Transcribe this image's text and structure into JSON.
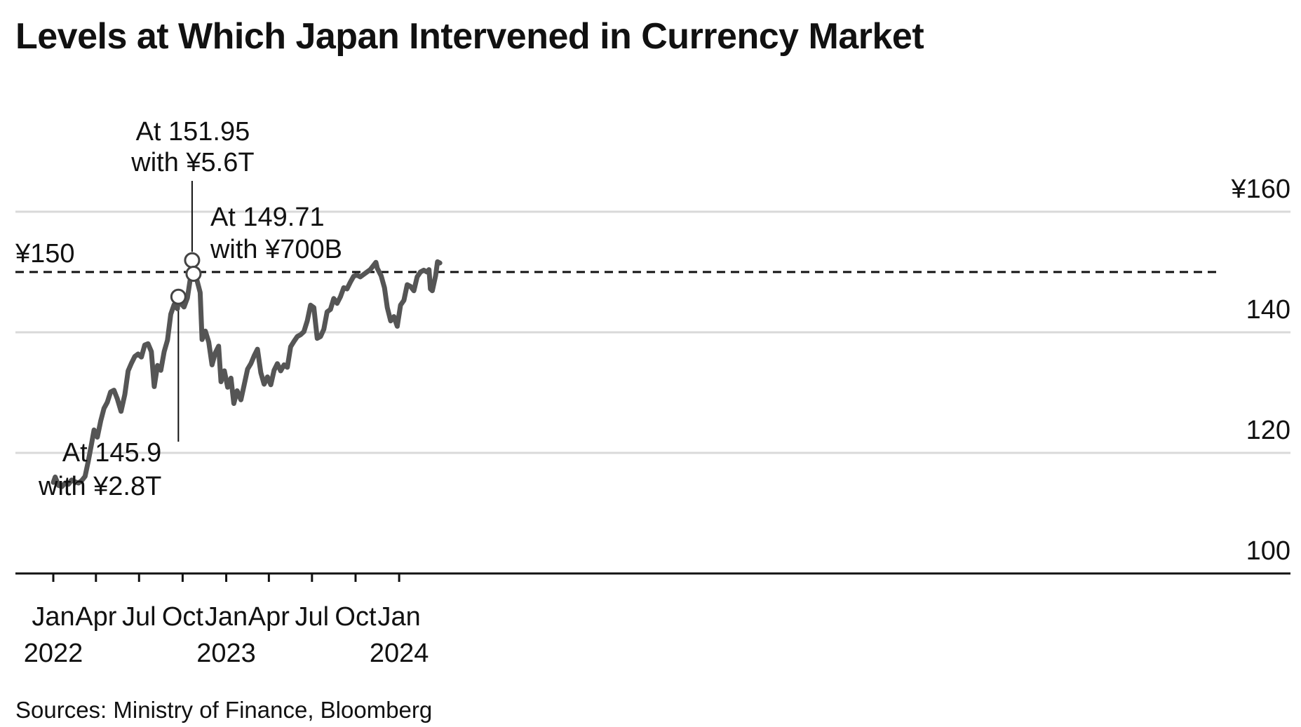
{
  "chart_data": {
    "type": "line",
    "title": "Levels at Which Japan Intervened in Currency Market",
    "source": "Sources: Ministry of Finance, Bloomberg",
    "xlabel": "",
    "ylabel": "",
    "y_ticks": [
      {
        "value": 100,
        "label": "100"
      },
      {
        "value": 120,
        "label": "120"
      },
      {
        "value": 140,
        "label": "140"
      },
      {
        "value": 160,
        "label": "¥160"
      }
    ],
    "ylim": [
      100,
      160
    ],
    "grid": true,
    "x_ticks": [
      {
        "date": "2022-01-01",
        "label": "Jan",
        "year": "2022"
      },
      {
        "date": "2022-04-01",
        "label": "Apr",
        "year": ""
      },
      {
        "date": "2022-07-01",
        "label": "Jul",
        "year": ""
      },
      {
        "date": "2022-10-01",
        "label": "Oct",
        "year": ""
      },
      {
        "date": "2023-01-01",
        "label": "Jan",
        "year": "2023"
      },
      {
        "date": "2023-04-01",
        "label": "Apr",
        "year": ""
      },
      {
        "date": "2023-07-01",
        "label": "Jul",
        "year": ""
      },
      {
        "date": "2023-10-01",
        "label": "Oct",
        "year": ""
      },
      {
        "date": "2024-01-01",
        "label": "Jan",
        "year": "2024"
      }
    ],
    "reference_line": {
      "value": 150,
      "label": "¥150"
    },
    "series": [
      {
        "line_color": "#555555",
        "points": [
          [
            "2022-01-01",
            115.1
          ],
          [
            "2022-01-05",
            116.0
          ],
          [
            "2022-01-12",
            114.6
          ],
          [
            "2022-01-19",
            114.4
          ],
          [
            "2022-01-26",
            115.0
          ],
          [
            "2022-02-02",
            114.8
          ],
          [
            "2022-02-09",
            115.5
          ],
          [
            "2022-02-16",
            115.2
          ],
          [
            "2022-02-23",
            115.0
          ],
          [
            "2022-03-02",
            115.4
          ],
          [
            "2022-03-09",
            116.1
          ],
          [
            "2022-03-16",
            118.7
          ],
          [
            "2022-03-23",
            121.6
          ],
          [
            "2022-03-28",
            123.8
          ],
          [
            "2022-04-04",
            122.6
          ],
          [
            "2022-04-11",
            125.3
          ],
          [
            "2022-04-18",
            127.4
          ],
          [
            "2022-04-25",
            128.4
          ],
          [
            "2022-05-02",
            130.1
          ],
          [
            "2022-05-09",
            130.4
          ],
          [
            "2022-05-16",
            129.0
          ],
          [
            "2022-05-24",
            126.9
          ],
          [
            "2022-06-01",
            129.7
          ],
          [
            "2022-06-08",
            133.6
          ],
          [
            "2022-06-15",
            134.9
          ],
          [
            "2022-06-22",
            136.0
          ],
          [
            "2022-06-29",
            136.4
          ],
          [
            "2022-07-06",
            135.9
          ],
          [
            "2022-07-13",
            137.9
          ],
          [
            "2022-07-20",
            138.1
          ],
          [
            "2022-07-27",
            136.8
          ],
          [
            "2022-08-02",
            131.0
          ],
          [
            "2022-08-09",
            134.5
          ],
          [
            "2022-08-16",
            133.7
          ],
          [
            "2022-08-23",
            136.8
          ],
          [
            "2022-08-30",
            138.7
          ],
          [
            "2022-09-06",
            143.0
          ],
          [
            "2022-09-13",
            144.6
          ],
          [
            "2022-09-20",
            143.9
          ],
          [
            "2022-09-22",
            145.9
          ],
          [
            "2022-09-27",
            144.8
          ],
          [
            "2022-10-04",
            144.2
          ],
          [
            "2022-10-11",
            145.7
          ],
          [
            "2022-10-18",
            149.3
          ],
          [
            "2022-10-21",
            151.95
          ],
          [
            "2022-10-24",
            149.2
          ],
          [
            "2022-10-31",
            148.7
          ],
          [
            "2022-11-07",
            146.6
          ],
          [
            "2022-11-11",
            138.8
          ],
          [
            "2022-11-18",
            140.2
          ],
          [
            "2022-11-25",
            138.4
          ],
          [
            "2022-12-02",
            134.6
          ],
          [
            "2022-12-09",
            136.6
          ],
          [
            "2022-12-16",
            137.7
          ],
          [
            "2022-12-21",
            131.8
          ],
          [
            "2022-12-28",
            133.6
          ],
          [
            "2023-01-04",
            130.9
          ],
          [
            "2023-01-11",
            132.4
          ],
          [
            "2023-01-17",
            128.2
          ],
          [
            "2023-01-24",
            130.3
          ],
          [
            "2023-02-01",
            128.8
          ],
          [
            "2023-02-08",
            131.3
          ],
          [
            "2023-02-15",
            133.9
          ],
          [
            "2023-02-22",
            134.8
          ],
          [
            "2023-03-01",
            136.1
          ],
          [
            "2023-03-08",
            137.2
          ],
          [
            "2023-03-15",
            133.3
          ],
          [
            "2023-03-22",
            131.4
          ],
          [
            "2023-03-29",
            132.6
          ],
          [
            "2023-04-05",
            131.3
          ],
          [
            "2023-04-12",
            133.7
          ],
          [
            "2023-04-19",
            134.8
          ],
          [
            "2023-04-26",
            133.6
          ],
          [
            "2023-05-03",
            134.6
          ],
          [
            "2023-05-10",
            134.2
          ],
          [
            "2023-05-17",
            137.6
          ],
          [
            "2023-05-24",
            138.5
          ],
          [
            "2023-05-31",
            139.3
          ],
          [
            "2023-06-07",
            139.6
          ],
          [
            "2023-06-14",
            140.1
          ],
          [
            "2023-06-21",
            141.9
          ],
          [
            "2023-06-28",
            144.5
          ],
          [
            "2023-07-05",
            144.1
          ],
          [
            "2023-07-12",
            139.0
          ],
          [
            "2023-07-19",
            139.3
          ],
          [
            "2023-07-26",
            140.5
          ],
          [
            "2023-08-02",
            143.4
          ],
          [
            "2023-08-09",
            143.8
          ],
          [
            "2023-08-16",
            145.6
          ],
          [
            "2023-08-23",
            144.8
          ],
          [
            "2023-08-30",
            145.9
          ],
          [
            "2023-09-06",
            147.4
          ],
          [
            "2023-09-13",
            147.2
          ],
          [
            "2023-09-20",
            148.3
          ],
          [
            "2023-09-27",
            149.3
          ],
          [
            "2023-10-04",
            149.5
          ],
          [
            "2023-10-11",
            149.2
          ],
          [
            "2023-10-18",
            149.6
          ],
          [
            "2023-10-25",
            150.0
          ],
          [
            "2023-11-01",
            150.4
          ],
          [
            "2023-11-13",
            151.6
          ],
          [
            "2023-11-16",
            150.6
          ],
          [
            "2023-11-24",
            149.4
          ],
          [
            "2023-12-01",
            147.4
          ],
          [
            "2023-12-07",
            144.1
          ],
          [
            "2023-12-14",
            141.9
          ],
          [
            "2023-12-21",
            142.6
          ],
          [
            "2023-12-28",
            141.0
          ],
          [
            "2024-01-04",
            144.5
          ],
          [
            "2024-01-11",
            145.3
          ],
          [
            "2024-01-18",
            147.9
          ],
          [
            "2024-01-25",
            147.6
          ],
          [
            "2024-02-01",
            146.9
          ],
          [
            "2024-02-08",
            149.2
          ],
          [
            "2024-02-15",
            150.0
          ],
          [
            "2024-02-22",
            150.3
          ],
          [
            "2024-02-29",
            150.0
          ],
          [
            "2024-03-04",
            150.4
          ],
          [
            "2024-03-07",
            147.2
          ],
          [
            "2024-03-11",
            146.9
          ],
          [
            "2024-03-18",
            149.4
          ],
          [
            "2024-03-22",
            151.7
          ],
          [
            "2024-03-27",
            151.5
          ]
        ]
      }
    ],
    "annotations": [
      {
        "date": "2022-09-22",
        "value": 145.9,
        "line1": "At 145.9",
        "line2": "with ¥2.8T"
      },
      {
        "date": "2022-10-21",
        "value": 151.95,
        "line1": "At 151.95",
        "line2": "with ¥5.6T"
      },
      {
        "date": "2022-10-24",
        "value": 149.71,
        "line1": "At 149.71",
        "line2": "with ¥700B"
      }
    ]
  }
}
